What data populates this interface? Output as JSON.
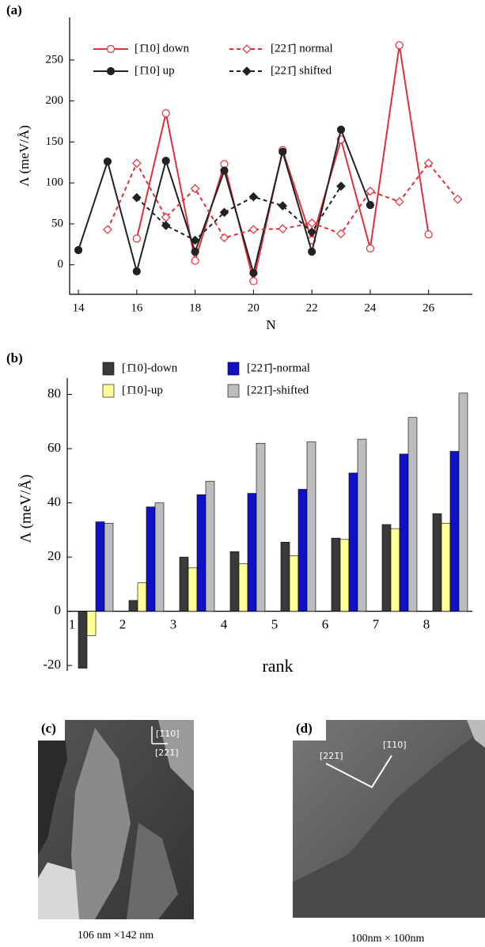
{
  "chart_data": [
    {
      "type": "line",
      "panel_label": "(a)",
      "x_label": "N",
      "y_label": "Λ (meV/Å)",
      "x": [
        14,
        15,
        16,
        17,
        18,
        19,
        20,
        21,
        22,
        23,
        24,
        25,
        26,
        27
      ],
      "xlim": [
        13.7,
        27.5
      ],
      "xticks": [
        14,
        16,
        18,
        20,
        22,
        24,
        26
      ],
      "ylim": [
        -36,
        302
      ],
      "yticks": [
        0,
        50,
        100,
        150,
        200,
        250
      ],
      "series": [
        {
          "name": "[1̄10] down",
          "color": "#e0303a",
          "marker": "circle",
          "filled": false,
          "dashed": false,
          "values": [
            null,
            null,
            32,
            185,
            5,
            123,
            -20,
            140,
            30,
            153,
            20,
            268,
            37,
            null
          ]
        },
        {
          "name": "[1̄10] up",
          "color": "#222222",
          "marker": "circle",
          "filled": true,
          "dashed": false,
          "values": [
            18,
            126,
            -8,
            127,
            16,
            115,
            -10,
            138,
            16,
            165,
            73,
            null,
            null,
            null
          ]
        },
        {
          "name": "[221̄] normal",
          "color": "#e0303a",
          "marker": "diamond",
          "filled": false,
          "dashed": true,
          "values": [
            null,
            43,
            124,
            58,
            93,
            33,
            43,
            44,
            51,
            38,
            90,
            77,
            124,
            80
          ]
        },
        {
          "name": "[221̄] shifted",
          "color": "#222222",
          "marker": "diamond",
          "filled": true,
          "dashed": true,
          "values": [
            null,
            null,
            82,
            48,
            30,
            64,
            83,
            72,
            40,
            96,
            null,
            null,
            null,
            null
          ]
        }
      ]
    },
    {
      "type": "bar",
      "panel_label": "(b)",
      "x_label": "rank",
      "y_label": "Λ (meV/Å)",
      "categories": [
        "1",
        "2",
        "3",
        "4",
        "5",
        "6",
        "7",
        "8"
      ],
      "ylim": [
        -22,
        86
      ],
      "yticks": [
        -20,
        0,
        20,
        40,
        60,
        80
      ],
      "series": [
        {
          "name": "[1̄10]-down",
          "color": "#3a3a3a",
          "values": [
            -21,
            4,
            20,
            22,
            25.5,
            27,
            32,
            36
          ]
        },
        {
          "name": "[1̄10]-up",
          "color": "#ffff99",
          "values": [
            -9,
            10.5,
            16,
            17.5,
            20.5,
            26.5,
            30.5,
            32.5
          ]
        },
        {
          "name": "[221̄]-normal",
          "color": "#1010c8",
          "values": [
            33,
            38.5,
            43,
            43.5,
            45,
            51,
            58,
            59
          ]
        },
        {
          "name": "[221̄]-shifted",
          "color": "#bdbdbd",
          "values": [
            32.5,
            40,
            48,
            62,
            62.5,
            63.5,
            71.5,
            80.5
          ]
        }
      ]
    }
  ],
  "panels": {
    "c": {
      "label": "(c)",
      "arrow_up": "[1̄10]",
      "arrow_right": "[221̄]",
      "caption": "106 nm ×142 nm"
    },
    "d": {
      "label": "(d)",
      "arrow_left": "[221̄]",
      "arrow_right": "[1̄10]",
      "caption": "100nm × 100nm"
    }
  }
}
